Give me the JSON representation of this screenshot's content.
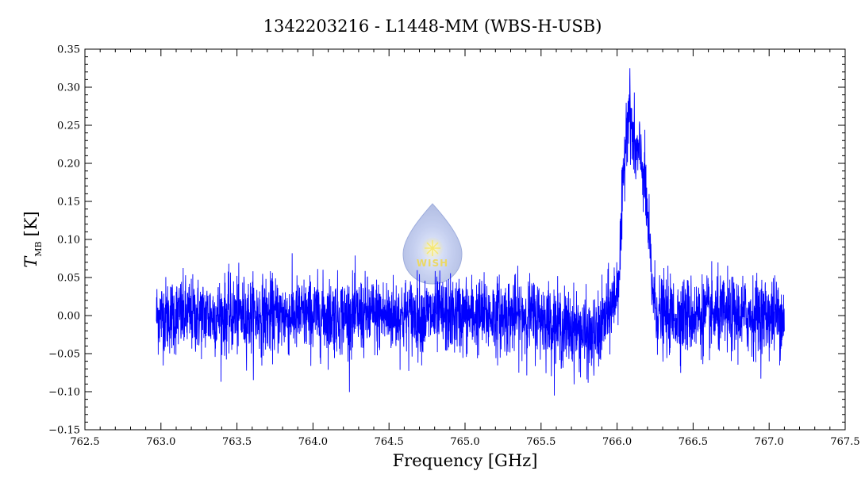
{
  "chart_data": {
    "type": "line",
    "title": "1342203216 - L1448-MM (WBS-H-USB)",
    "xlabel": "Frequency [GHz]",
    "ylabel_main": "T",
    "ylabel_sub": "MB",
    "ylabel_unit": "[K]",
    "xlim": [
      762.5,
      767.5
    ],
    "ylim": [
      -0.15,
      0.35
    ],
    "x_ticks": [
      "762.5",
      "763.0",
      "763.5",
      "764.0",
      "764.5",
      "765.0",
      "765.5",
      "766.0",
      "766.5",
      "767.0",
      "767.5"
    ],
    "y_ticks": [
      "-0.15",
      "-0.10",
      "-0.05",
      "0.00",
      "0.05",
      "0.10",
      "0.15",
      "0.20",
      "0.25",
      "0.30",
      "0.35"
    ],
    "series": [
      {
        "color": "#0000ff",
        "x_range": [
          762.97,
          767.1
        ],
        "noise_rms_K": 0.025,
        "features": [
          {
            "kind": "emission-peak",
            "x": 766.08,
            "y": 0.29
          },
          {
            "kind": "emission-shoulder",
            "x": 766.18,
            "y": 0.2
          },
          {
            "kind": "absorption-dip",
            "x": 765.83,
            "y": -0.12
          }
        ]
      }
    ],
    "grid": false,
    "logo_text": "WISH"
  }
}
